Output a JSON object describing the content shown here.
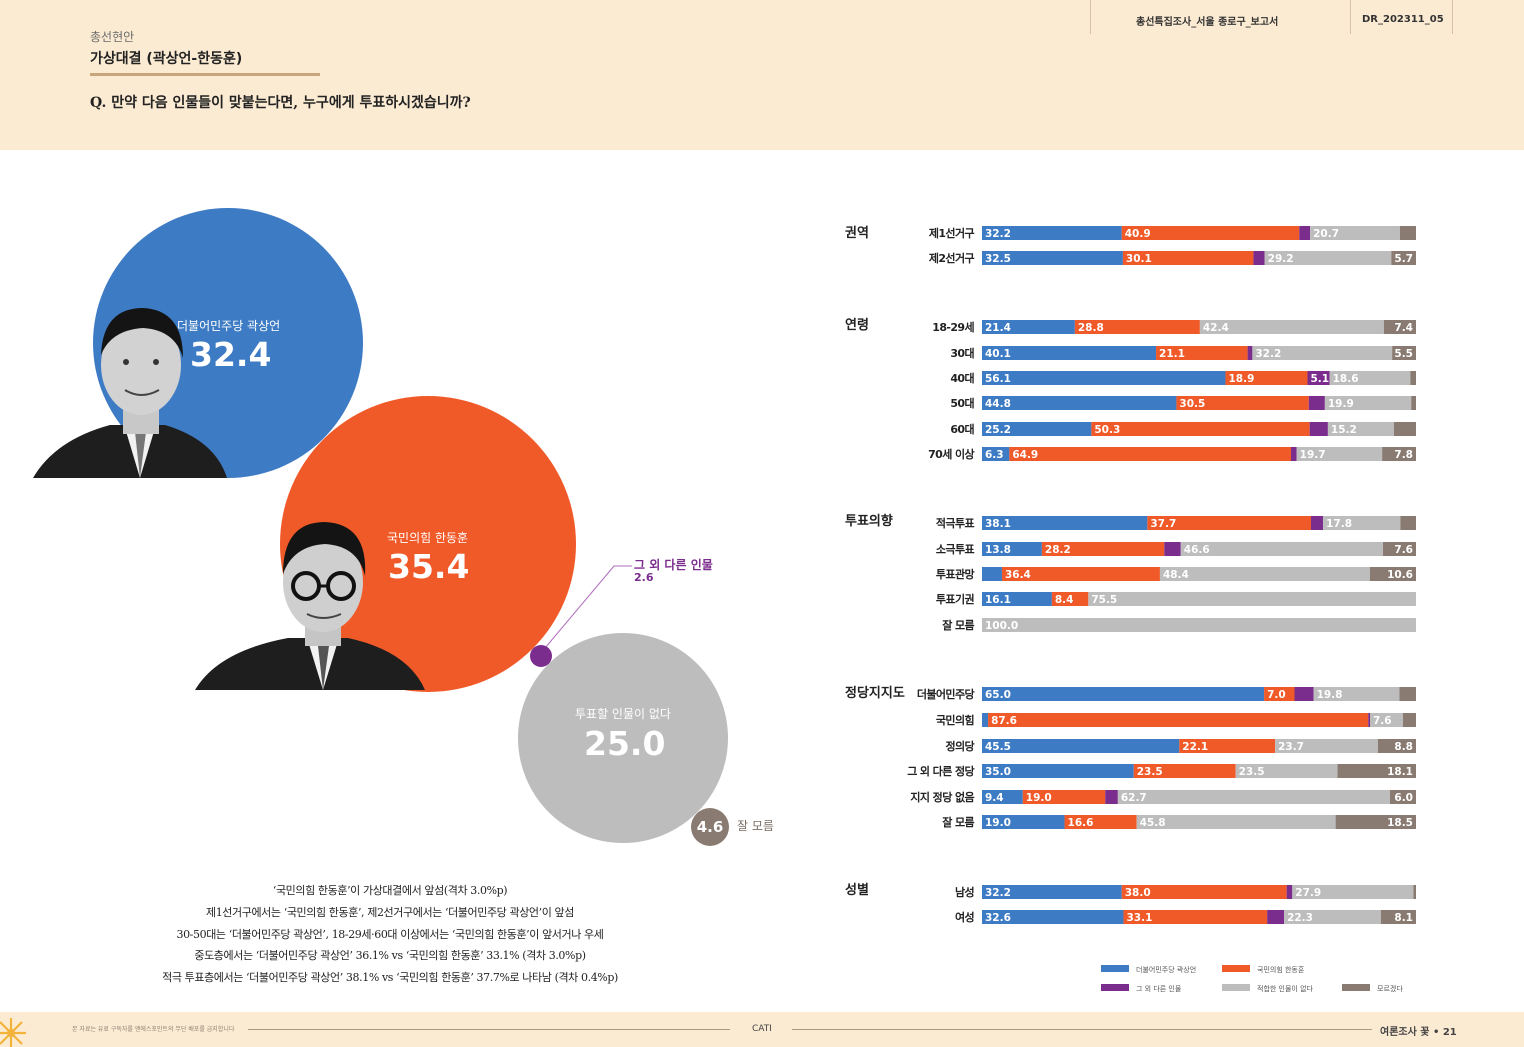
{
  "header": {
    "category": "총선현안",
    "title": "가상대결 (곽상언-한동훈)",
    "question": "Q. 만약 다음 인물들이 맞붙는다면, 누구에게 투표하시겠습니까?",
    "doc_title": "총선특집조사_서울 종로구_보고서",
    "doc_code": "DR_202311_05"
  },
  "colors": {
    "dem": "#3d7bc4",
    "ppp": "#f05a28",
    "other": "#7b2d8e",
    "none": "#bdbdbd",
    "unknown": "#8a7b72",
    "header_bg": "#fcebd3"
  },
  "bubbles": {
    "dem": {
      "label": "더불어민주당 곽상언",
      "value": "32.4"
    },
    "ppp": {
      "label": "국민의힘 한동훈",
      "value": "35.4"
    },
    "other": {
      "label": "그 외 다른 인물",
      "value": "2.6"
    },
    "none": {
      "label": "투표할 인물이 없다",
      "value": "25.0"
    },
    "unknown": {
      "label": "잘 모름",
      "value": "4.6"
    }
  },
  "summary": [
    "‘국민의힘 한동훈’이 가상대결에서 앞섬(격차 3.0%p)",
    "제1선거구에서는 ‘국민의힘 한동훈’, 제2선거구에서는 ‘더불어민주당 곽상언’이 앞섬",
    "30-50대는 ‘더불어민주당 곽상언’, 18-29세·60대 이상에서는 ‘국민의힘 한동훈’이 앞서거나 우세",
    "중도층에서는 ‘더불어민주당 곽상언’ 36.1% vs ‘국민의힘 한동훈’ 33.1% (격차 3.0%p)",
    "적극 투표층에서는 ‘더불어민주당 곽상언’ 38.1% vs ‘국민의힘 한동훈’ 37.7%로 나타남 (격차 0.4%p)"
  ],
  "chart_data": {
    "type": "bar",
    "orientation": "horizontal",
    "stacked": true,
    "normalized": true,
    "xlim": [
      0,
      100
    ],
    "grid": false,
    "legend_position": "bottom-right",
    "series_names": [
      "더불어민주당 곽상언",
      "국민의힘 한동훈",
      "그 외 다른 인물",
      "적합한 인물이 없다",
      "모르겠다"
    ],
    "series_colors": [
      "#3d7bc4",
      "#f05a28",
      "#7b2d8e",
      "#bdbdbd",
      "#8a7b72"
    ],
    "groups": [
      {
        "name": "권역",
        "rows": [
          {
            "label": "제1선거구",
            "values": [
              32.2,
              40.9,
              2.5,
              20.7,
              3.7
            ],
            "labels": [
              "32.2",
              "40.9",
              "",
              "20.7",
              ""
            ]
          },
          {
            "label": "제2선거구",
            "values": [
              32.5,
              30.1,
              2.6,
              29.2,
              5.7
            ],
            "labels": [
              "32.5",
              "30.1",
              "",
              "29.2",
              "5.7"
            ]
          }
        ]
      },
      {
        "name": "연령",
        "rows": [
          {
            "label": "18-29세",
            "values": [
              21.4,
              28.8,
              0,
              42.4,
              7.4
            ],
            "labels": [
              "21.4",
              "28.8",
              "",
              "42.4",
              "7.4"
            ]
          },
          {
            "label": "30대",
            "values": [
              40.1,
              21.1,
              1.1,
              32.2,
              5.5
            ],
            "labels": [
              "40.1",
              "21.1",
              "",
              "32.2",
              "5.5"
            ]
          },
          {
            "label": "40대",
            "values": [
              56.1,
              18.9,
              5.1,
              18.6,
              1.3
            ],
            "labels": [
              "56.1",
              "18.9",
              "5.1",
              "18.6",
              ""
            ]
          },
          {
            "label": "50대",
            "values": [
              44.8,
              30.5,
              3.7,
              19.9,
              1.1
            ],
            "labels": [
              "44.8",
              "30.5",
              "",
              "19.9",
              ""
            ]
          },
          {
            "label": "60대",
            "values": [
              25.2,
              50.3,
              4.2,
              15.2,
              5.1
            ],
            "labels": [
              "25.2",
              "50.3",
              "",
              "15.2",
              ""
            ]
          },
          {
            "label": "70세 이상",
            "values": [
              6.3,
              64.9,
              1.3,
              19.7,
              7.8
            ],
            "labels": [
              "6.3",
              "64.9",
              "",
              "19.7",
              "7.8"
            ]
          }
        ]
      },
      {
        "name": "투표의향",
        "rows": [
          {
            "label": "적극투표",
            "values": [
              38.1,
              37.7,
              2.8,
              17.8,
              3.6
            ],
            "labels": [
              "38.1",
              "37.7",
              "",
              "17.8",
              ""
            ]
          },
          {
            "label": "소극투표",
            "values": [
              13.8,
              28.2,
              3.8,
              46.6,
              7.6
            ],
            "labels": [
              "13.8",
              "28.2",
              "",
              "46.6",
              "7.6"
            ]
          },
          {
            "label": "투표관망",
            "values": [
              4.6,
              36.4,
              0,
              48.4,
              10.6
            ],
            "labels": [
              "",
              "36.4",
              "",
              "48.4",
              "10.6"
            ]
          },
          {
            "label": "투표기권",
            "values": [
              16.1,
              8.4,
              0,
              75.5,
              0
            ],
            "labels": [
              "16.1",
              "8.4",
              "",
              "75.5",
              ""
            ]
          },
          {
            "label": "잘 모름",
            "values": [
              0,
              0,
              0,
              100.0,
              0
            ],
            "labels": [
              "",
              "",
              "",
              "100.0",
              ""
            ]
          }
        ]
      },
      {
        "name": "정당지지도",
        "rows": [
          {
            "label": "더불어민주당",
            "values": [
              65.0,
              7.0,
              4.4,
              19.8,
              3.8
            ],
            "labels": [
              "65.0",
              "7.0",
              "",
              "19.8",
              ""
            ]
          },
          {
            "label": "국민의힘",
            "values": [
              1.4,
              87.6,
              0.4,
              7.6,
              3.0
            ],
            "labels": [
              "",
              "87.6",
              "",
              "7.6",
              ""
            ]
          },
          {
            "label": "정의당",
            "values": [
              45.5,
              22.1,
              0,
              23.7,
              8.8
            ],
            "labels": [
              "45.5",
              "22.1",
              "",
              "23.7",
              "8.8"
            ]
          },
          {
            "label": "그 외 다른 정당",
            "values": [
              35.0,
              23.5,
              0,
              23.5,
              18.1
            ],
            "labels": [
              "35.0",
              "23.5",
              "",
              "23.5",
              "18.1"
            ]
          },
          {
            "label": "지지 정당 없음",
            "values": [
              9.4,
              19.0,
              2.9,
              62.7,
              6.0
            ],
            "labels": [
              "9.4",
              "19.0",
              "",
              "62.7",
              "6.0"
            ]
          },
          {
            "label": "잘 모름",
            "values": [
              19.0,
              16.6,
              0,
              45.8,
              18.5
            ],
            "labels": [
              "19.0",
              "16.6",
              "",
              "45.8",
              "18.5"
            ]
          }
        ]
      },
      {
        "name": "성별",
        "rows": [
          {
            "label": "남성",
            "values": [
              32.2,
              38.0,
              1.3,
              27.9,
              0.6
            ],
            "labels": [
              "32.2",
              "38.0",
              "",
              "27.9",
              ""
            ]
          },
          {
            "label": "여성",
            "values": [
              32.6,
              33.1,
              3.9,
              22.3,
              8.1
            ],
            "labels": [
              "32.6",
              "33.1",
              "",
              "22.3",
              "8.1"
            ]
          }
        ]
      }
    ]
  },
  "legend": [
    "더불어민주당 곽상언",
    "국민의힘 한동훈",
    "그 외 다른 인물",
    "적합한 인물이 없다",
    "모르겠다"
  ],
  "footer": {
    "note": "본 자료는 유료 구독자를 엔에스포인트의 무단 배포를 금지합니다",
    "method": "CATI",
    "page": "여론조사 꽃 • 21"
  }
}
